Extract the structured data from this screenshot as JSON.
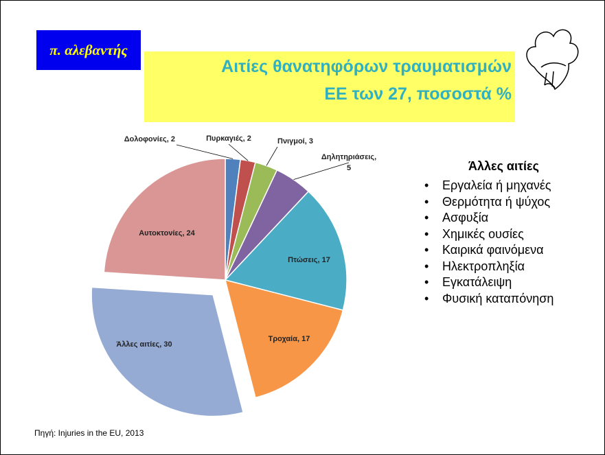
{
  "header": {
    "logo": "π. αλεβαντής",
    "title_line1": "Αιτίες θανατηφόρων τραυματισμών",
    "title_line2": "ΕΕ των 27, ποσοστά %"
  },
  "chart_data": {
    "type": "pie",
    "values": [
      2,
      2,
      3,
      5,
      17,
      17,
      30,
      24
    ],
    "value_labels": [
      "Δολοφονίες, 2",
      "Πυρκαγιές, 2",
      "Πνιγμοί, 3",
      "Δηλητηριάσεις, 5",
      "Πτώσεις, 17",
      "Τροχαία, 17",
      "Άλλες αιτίες, 30",
      "Αυτοκτονίες, 24"
    ],
    "colors": [
      "#4f81bd",
      "#c0504d",
      "#9bbb59",
      "#8064a2",
      "#4bacc6",
      "#f79646",
      "#95abd4",
      "#d99694"
    ],
    "exploded": [
      6
    ]
  },
  "sidebar": {
    "heading": "Άλλες αιτίες",
    "items": [
      "Εργαλεία ή μηχανές",
      "Θερμότητα ή ψύχος",
      "Ασφυξία",
      "Χημικές ουσίες",
      "Καιρικά φαινόμενα",
      "Ηλεκτροπληξία",
      "Εγκατάλειψη",
      "Φυσική καταπόνηση"
    ]
  },
  "source": "Πηγή: Injuries in the EU, 2013"
}
